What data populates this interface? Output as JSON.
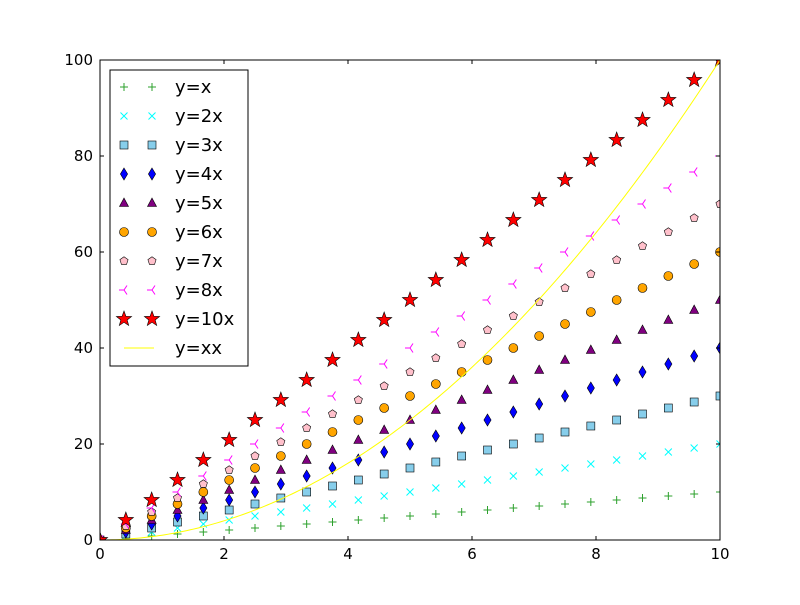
{
  "chart_data": {
    "type": "scatter",
    "title": "",
    "xlabel": "",
    "ylabel": "",
    "xlim": [
      0,
      10
    ],
    "ylim": [
      0,
      100
    ],
    "x": [
      0,
      0.4167,
      0.8333,
      1.25,
      1.6667,
      2.0833,
      2.5,
      2.9167,
      3.3333,
      3.75,
      4.1667,
      4.5833,
      5,
      5.4167,
      5.8333,
      6.25,
      6.6667,
      7.0833,
      7.5,
      7.9167,
      8.3333,
      8.75,
      9.1667,
      9.5833,
      10
    ],
    "xticks": [
      "0",
      "2",
      "4",
      "6",
      "8",
      "10"
    ],
    "yticks": [
      "0",
      "20",
      "40",
      "60",
      "80",
      "100"
    ],
    "legend_position": "upper-left",
    "series": [
      {
        "name": "y=x",
        "slope": 1,
        "marker": "plus",
        "color": "#2ca02c"
      },
      {
        "name": "y=2x",
        "slope": 2,
        "marker": "x",
        "color": "#00ffff"
      },
      {
        "name": "y=3x",
        "slope": 3,
        "marker": "square",
        "color": "#87ceeb"
      },
      {
        "name": "y=4x",
        "slope": 4,
        "marker": "diamond",
        "color": "#0000ff"
      },
      {
        "name": "y=5x",
        "slope": 5,
        "marker": "triangle",
        "color": "#800080"
      },
      {
        "name": "y=6x",
        "slope": 6,
        "marker": "circle",
        "color": "#ffa500"
      },
      {
        "name": "y=7x",
        "slope": 7,
        "marker": "pentagon",
        "color": "#ffc0cb"
      },
      {
        "name": "y=8x",
        "slope": 8,
        "marker": "tri_left",
        "color": "#ff00ff"
      },
      {
        "name": "y=10x",
        "slope": 10,
        "marker": "star",
        "color": "#ff0000"
      },
      {
        "name": "y=xx",
        "power": 2,
        "marker": "line",
        "color": "#ffff00"
      }
    ]
  }
}
